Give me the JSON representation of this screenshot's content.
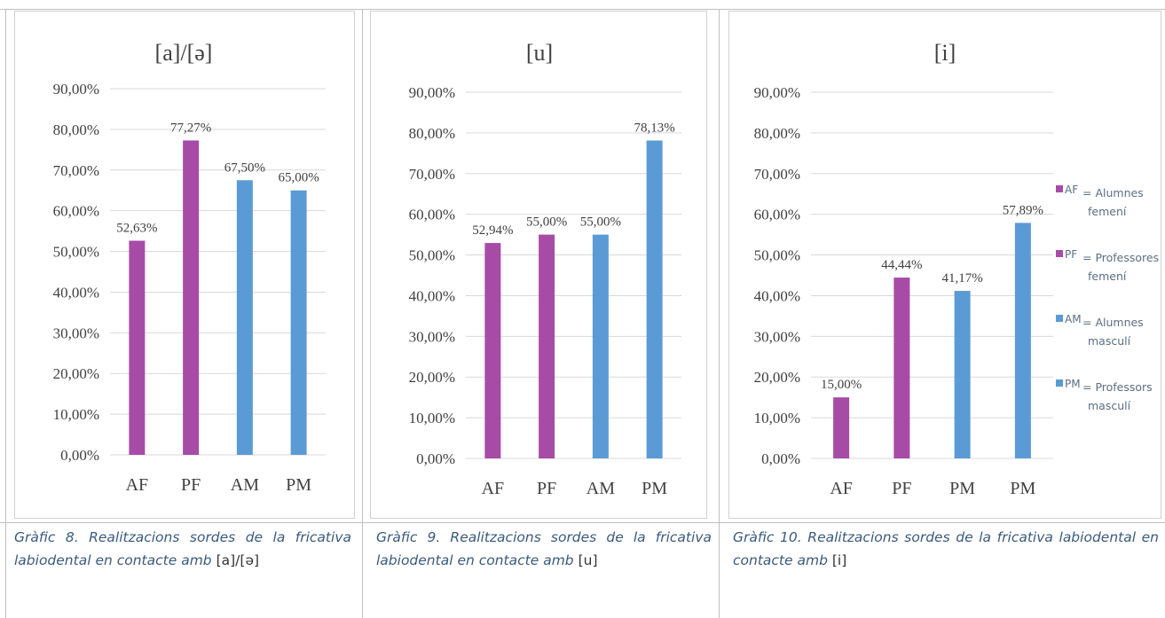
{
  "colors": {
    "female": "#a64ca6",
    "male": "#5b9bd5",
    "grid": "#d9d9d9",
    "text": "#404040",
    "caption": "#3a5a7c"
  },
  "chart_data": [
    {
      "type": "bar",
      "title": "[a]/[ə]",
      "categories": [
        "AF",
        "PF",
        "AM",
        "PM"
      ],
      "values": [
        52.63,
        77.27,
        67.5,
        65.0
      ],
      "labels": [
        "52,63%",
        "77,27%",
        "67,50%",
        "65,00%"
      ],
      "bar_colors": [
        "female",
        "female",
        "male",
        "male"
      ],
      "yticks": [
        "0,00%",
        "10,00%",
        "20,00%",
        "30,00%",
        "40,00%",
        "50,00%",
        "60,00%",
        "70,00%",
        "80,00%",
        "90,00%"
      ],
      "ylim": [
        0,
        90
      ],
      "grid": true
    },
    {
      "type": "bar",
      "title": "[u]",
      "categories": [
        "AF",
        "PF",
        "AM",
        "PM"
      ],
      "values": [
        52.94,
        55.0,
        55.0,
        78.13
      ],
      "labels": [
        "52,94%",
        "55,00%",
        "55,00%",
        "78,13%"
      ],
      "bar_colors": [
        "female",
        "female",
        "male",
        "male"
      ],
      "yticks": [
        "0,00%",
        "10,00%",
        "20,00%",
        "30,00%",
        "40,00%",
        "50,00%",
        "60,00%",
        "70,00%",
        "80,00%",
        "90,00%"
      ],
      "ylim": [
        0,
        90
      ],
      "grid": true
    },
    {
      "type": "bar",
      "title": "[i]",
      "categories": [
        "AF",
        "PF",
        "PM",
        "PM"
      ],
      "values": [
        15.0,
        44.44,
        41.17,
        57.89
      ],
      "labels": [
        "15,00%",
        "44,44%",
        "41,17%",
        "57,89%"
      ],
      "bar_colors": [
        "female",
        "female",
        "male",
        "male"
      ],
      "yticks": [
        "0,00%",
        "10,00%",
        "20,00%",
        "30,00%",
        "40,00%",
        "50,00%",
        "60,00%",
        "70,00%",
        "80,00%",
        "90,00%"
      ],
      "ylim": [
        0,
        90
      ],
      "grid": true,
      "legend_position": "right",
      "legend": [
        {
          "code": "AF",
          "lines": [
            "= Alumnes",
            "femení"
          ],
          "color": "female"
        },
        {
          "code": "PF",
          "lines": [
            "= Professores",
            "femení"
          ],
          "color": "female"
        },
        {
          "code": "AM",
          "lines": [
            "= Alumnes",
            "masculí"
          ],
          "color": "male"
        },
        {
          "code": "PM",
          "lines": [
            "= Professors",
            "masculí"
          ],
          "color": "male"
        }
      ]
    }
  ],
  "captions": [
    {
      "italic": "Gràfic 8. Realitzacions sordes de la fricativa labiodental en contacte amb",
      "normal": "[a]/[ə]"
    },
    {
      "italic": "Gràfic 9. Realitzacions sordes de la fricativa labiodental en contacte amb",
      "normal": "[u]"
    },
    {
      "italic": "Gràfic 10. Realitzacions sordes de la fricativa labiodental en contacte amb",
      "normal": "[i]"
    }
  ]
}
